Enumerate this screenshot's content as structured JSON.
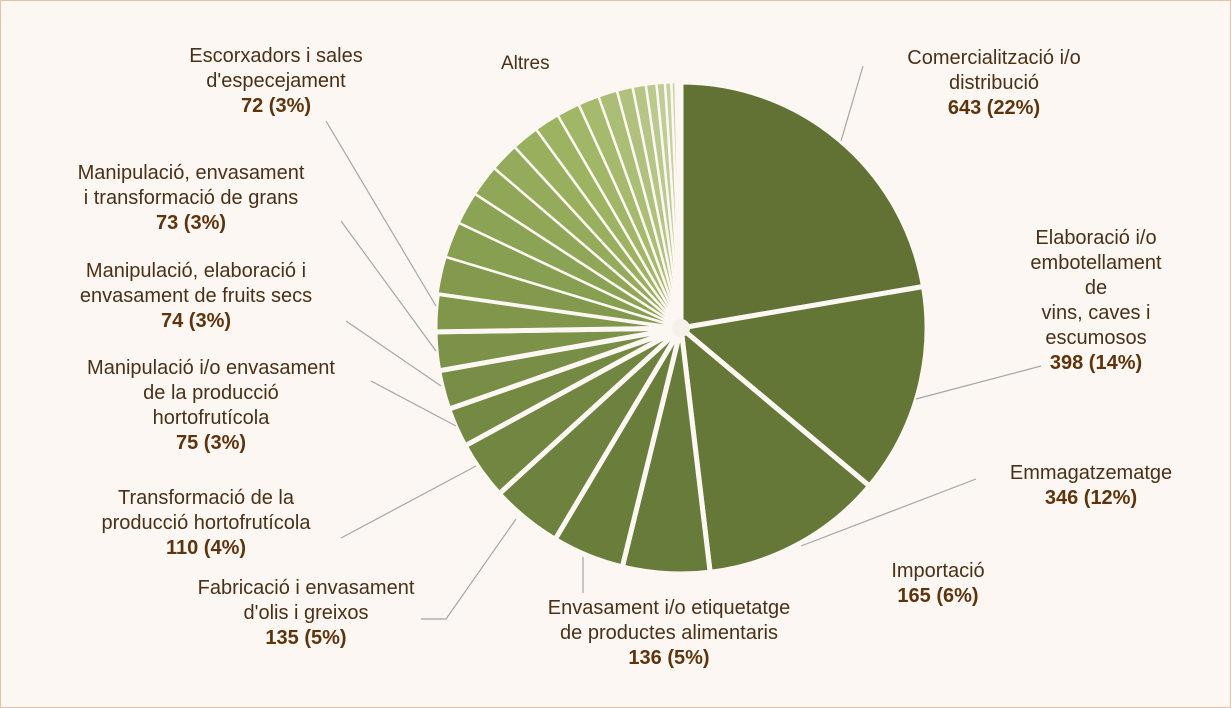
{
  "chart_data": {
    "type": "pie",
    "annotation": "Altres",
    "categories": [
      "Comercialització i/o\ndistribució",
      "Elaboració i/o\nembotellament de\nvins, caves i\nescumosos",
      "Emmagatzematge",
      "Importació",
      "Envasament i/o etiquetatge\nde productes alimentaris",
      "Fabricació i envasament\nd'olis i greixos",
      "Transformació de la\nproducció hortofrutícola",
      "Manipulació i/o envasament\nde la producció\nhortofrutícola",
      "Manipulació, elaboració i\nenvasament de fruits secs",
      "Manipulació, envasament\ni transformació de grans",
      "Escorxadors i sales\nd'especejament",
      null,
      null,
      null,
      null,
      null,
      null,
      null,
      null,
      null,
      null,
      null,
      null,
      null,
      null,
      null,
      null,
      null,
      null,
      null
    ],
    "values": [
      643,
      398,
      346,
      165,
      136,
      135,
      110,
      75,
      74,
      73,
      72,
      70,
      68,
      62,
      60,
      55,
      52,
      48,
      44,
      40,
      36,
      30,
      25,
      20,
      16,
      12,
      8,
      5,
      3,
      2
    ],
    "value_labels": [
      "643 (22%)",
      "398 (14%)",
      "346 (12%)",
      "165 (6%)",
      "136 (5%)",
      "135 (5%)",
      "110 (4%)",
      "75 (3%)",
      "74 (3%)",
      "73 (3%)",
      "72 (3%)",
      null,
      null,
      null,
      null,
      null,
      null,
      null,
      null,
      null,
      null,
      null,
      null,
      null,
      null,
      null,
      null,
      null,
      null,
      null
    ],
    "colors": [
      "#617234",
      "#637636",
      "#657838",
      "#677b3a",
      "#6a7e3c",
      "#6d823e",
      "#718641",
      "#748a43",
      "#788e46",
      "#7b9248",
      "#7f964b",
      "#839a4e",
      "#879f51",
      "#8ba354",
      "#8fa757",
      "#93ab5a",
      "#98b05e",
      "#9cb462",
      "#a1b767",
      "#a6ba6e",
      "#abbe76",
      "#b0c17e",
      "#b5c586",
      "#bac98e",
      "#bfcc96",
      "#c4d09e",
      "#c9d4a6",
      "#ced8ae",
      "#d3dcb6",
      "#d8e0be"
    ]
  }
}
